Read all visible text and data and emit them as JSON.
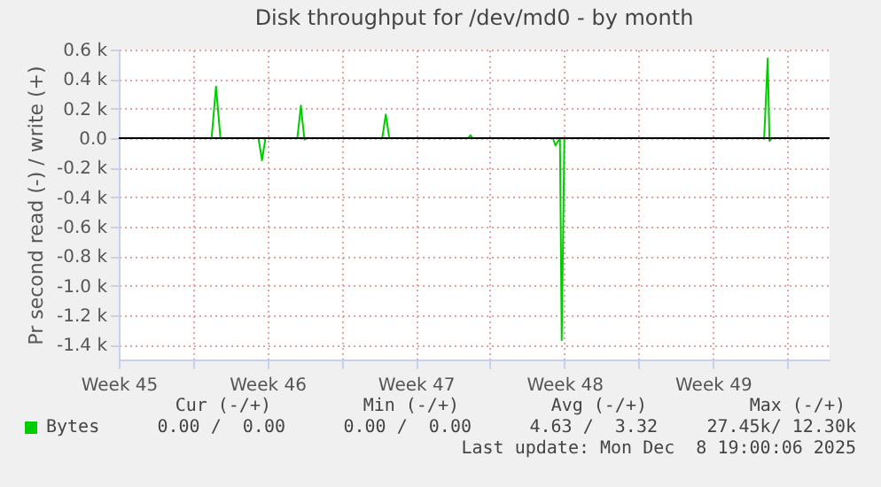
{
  "chart_data": {
    "type": "line",
    "title": "Disk throughput for /dev/md0 - by month",
    "ylabel": "Pr second read (-) / write (+)",
    "xlim": [
      "2025-11-06T12:00",
      "2025-12-10T00:00"
    ],
    "xticks": [
      {
        "value": "2025-11-06T12:00",
        "label": "Week 45"
      },
      {
        "value": "2025-11-10",
        "label": null
      },
      {
        "value": "2025-11-13T12:00",
        "label": "Week 46"
      },
      {
        "value": "2025-11-17",
        "label": null
      },
      {
        "value": "2025-11-20T12:00",
        "label": "Week 47"
      },
      {
        "value": "2025-11-24",
        "label": null
      },
      {
        "value": "2025-11-27T12:00",
        "label": "Week 48"
      },
      {
        "value": "2025-12-01",
        "label": null
      },
      {
        "value": "2025-12-04T12:00",
        "label": "Week 49"
      },
      {
        "value": "2025-12-08",
        "label": null
      }
    ],
    "ylim": [
      -1500,
      600
    ],
    "yticks": [
      {
        "value": 600,
        "label": "0.6 k"
      },
      {
        "value": 400,
        "label": "0.4 k"
      },
      {
        "value": 200,
        "label": "0.2 k"
      },
      {
        "value": 0,
        "label": "0.0"
      },
      {
        "value": -200,
        "label": "-0.2 k"
      },
      {
        "value": -400,
        "label": "-0.4 k"
      },
      {
        "value": -600,
        "label": "-0.6 k"
      },
      {
        "value": -800,
        "label": "-0.8 k"
      },
      {
        "value": -1000,
        "label": "-1.0 k"
      },
      {
        "value": -1200,
        "label": "-1.2 k"
      },
      {
        "value": -1400,
        "label": "-1.4 k"
      }
    ],
    "grid": true,
    "legend": "bottom",
    "ref_lines": [
      {
        "axis": "y",
        "value": 0,
        "color": "#000000"
      }
    ],
    "series": [
      {
        "name": "Bytes",
        "color": "#00cc00",
        "x": [
          "2025-11-06T14:00",
          "2025-11-10T21:00",
          "2025-11-11T02:00",
          "2025-11-11T07:00",
          "2025-11-13T02:00",
          "2025-11-13T06:00",
          "2025-11-13T10:00",
          "2025-11-14T22:00",
          "2025-11-15T02:00",
          "2025-11-15T06:00",
          "2025-11-15T09:00",
          "2025-11-18T22:00",
          "2025-11-19T02:00",
          "2025-11-19T06:00",
          "2025-11-22T23:00",
          "2025-11-23T02:00",
          "2025-11-23T04:00",
          "2025-11-26T23:00",
          "2025-11-27T02:00",
          "2025-11-27T07:00",
          "2025-11-27T09:00",
          "2025-11-27T12:00",
          "2025-12-06T22:00",
          "2025-12-07T02:00",
          "2025-12-07T04:00",
          "2025-12-07T07:00",
          "2025-12-07T23:00"
        ],
        "values": [
          0,
          0,
          350,
          0,
          0,
          -150,
          0,
          0,
          220,
          -10,
          0,
          0,
          160,
          0,
          0,
          20,
          0,
          0,
          -50,
          0,
          -1370,
          0,
          0,
          540,
          -20,
          0,
          0
        ]
      }
    ],
    "annotations": [
      "Cur (-/+)",
      "Min (-/+)",
      "Avg (-/+)",
      "Max (-/+)",
      "0.00 /  0.00",
      "0.00 /  0.00",
      "4.63 /  3.32",
      "27.45k/ 12.30k",
      "Last update: Mon Dec  8 19:00:06 2025"
    ]
  }
}
